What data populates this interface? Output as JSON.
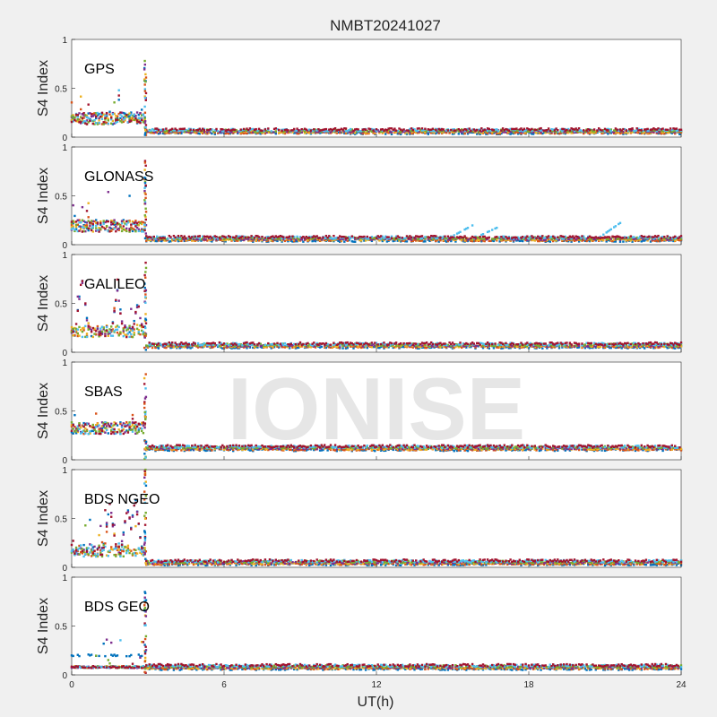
{
  "title": "NMBT20241027",
  "watermark": "IONISE",
  "chart_data": {
    "type": "scatter",
    "title": "NMBT20241027",
    "xlabel": "UT(h)",
    "ylabel": "S4 Index",
    "xlim": [
      0,
      24
    ],
    "ylim": [
      0,
      1
    ],
    "xticks": [
      "0",
      "6",
      "12",
      "18",
      "24"
    ],
    "yticks": [
      "0",
      "0.5",
      "1"
    ],
    "grid": false,
    "event_time_ut": 2.9,
    "colors": [
      "#0072BD",
      "#D95319",
      "#EDB120",
      "#7E2F8E",
      "#77AC30",
      "#4DBEEE",
      "#A2142F"
    ],
    "panels": [
      {
        "label": "GPS",
        "approx_baseline_after_event": 0.06,
        "series": [
          {
            "values_pre_event_range": [
              0.05,
              0.62
            ],
            "peak": 0.78
          }
        ],
        "peak_at_event": 0.78
      },
      {
        "label": "GLONASS",
        "approx_baseline_after_event": 0.06,
        "peak_at_event": 0.88,
        "later_rises": [
          [
            15.8,
            0.2
          ],
          [
            16.8,
            0.18
          ],
          [
            21.7,
            0.24
          ]
        ]
      },
      {
        "label": "GALILEO",
        "approx_baseline_after_event": 0.07,
        "peak_at_event": 0.95,
        "early_peaks": [
          [
            0.4,
            0.75
          ],
          [
            1.8,
            0.6
          ],
          [
            2.6,
            0.48
          ]
        ]
      },
      {
        "label": "SBAS",
        "approx_baseline_after_event": 0.12,
        "peak_at_event": 0.88
      },
      {
        "label": "BDS NGEO",
        "approx_baseline_after_event": 0.05,
        "peak_at_event": 1.0,
        "early_peaks": [
          [
            1.5,
            0.62
          ],
          [
            2.2,
            0.6
          ],
          [
            2.5,
            0.68
          ]
        ]
      },
      {
        "label": "BDS GEO",
        "approx_baseline_after_event": 0.08,
        "peak_at_event": 0.85,
        "pre_event_series_level": 0.2
      }
    ]
  }
}
